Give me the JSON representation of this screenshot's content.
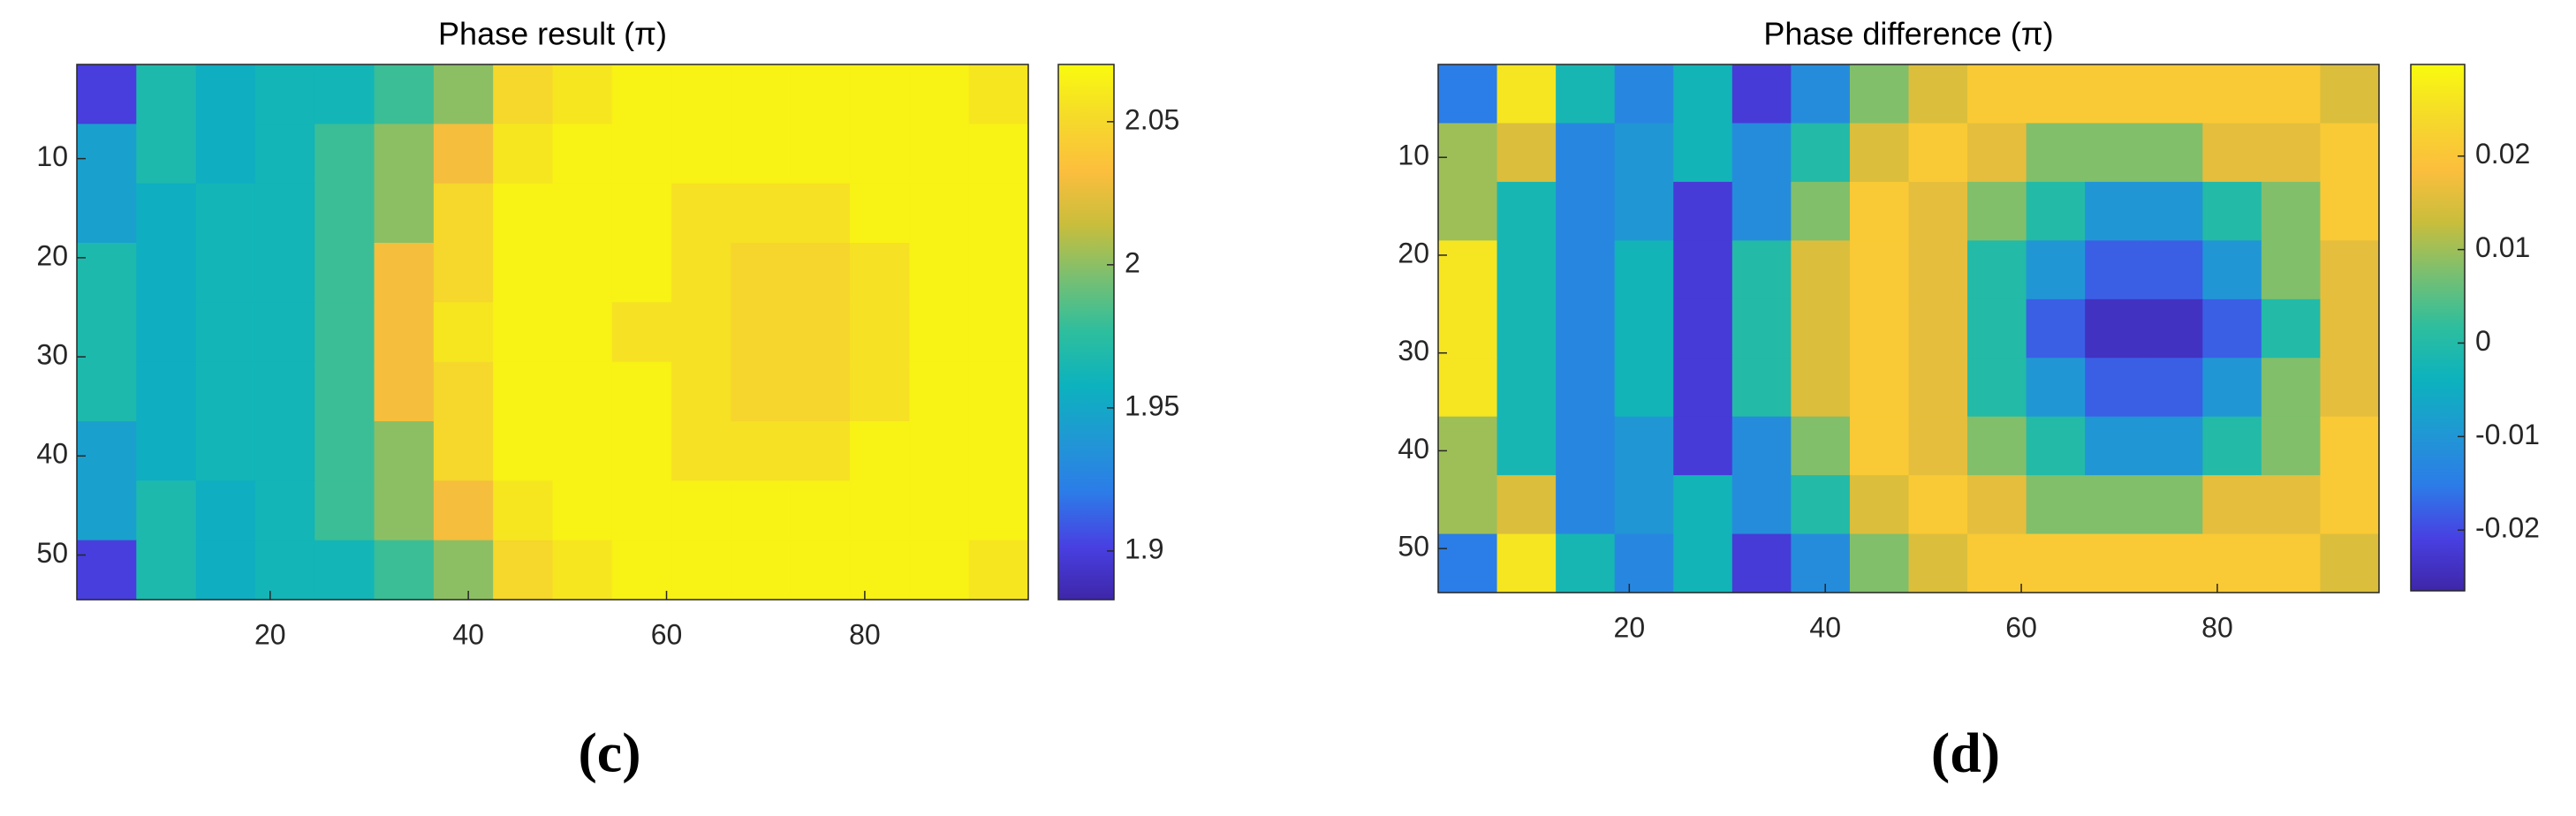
{
  "chart_data": [
    {
      "type": "heatmap",
      "title": "Phase result (π)",
      "caption": "(c)",
      "colormap": "parula",
      "x": [
        3.5,
        9.5,
        15.5,
        21.5,
        27.5,
        33.5,
        39.5,
        45.5,
        51.5,
        57.5,
        63.5,
        69.5,
        75.5,
        81.5,
        87.5,
        93.5
      ],
      "y": [
        3.5,
        9.5,
        15.5,
        21.5,
        27.5,
        33.5,
        39.5,
        45.5,
        51.5
      ],
      "z": [
        [
          1.9,
          1.968,
          1.955,
          1.962,
          1.962,
          1.98,
          2.0,
          2.05,
          2.058,
          2.065,
          2.065,
          2.065,
          2.065,
          2.065,
          2.065,
          2.058
        ],
        [
          1.945,
          1.968,
          1.955,
          1.962,
          1.98,
          2.0,
          2.03,
          2.058,
          2.065,
          2.065,
          2.065,
          2.065,
          2.065,
          2.065,
          2.065,
          2.065
        ],
        [
          1.945,
          1.955,
          1.962,
          1.962,
          1.98,
          2.0,
          2.05,
          2.065,
          2.065,
          2.065,
          2.055,
          2.055,
          2.055,
          2.065,
          2.065,
          2.065
        ],
        [
          1.968,
          1.955,
          1.962,
          1.962,
          1.98,
          2.03,
          2.05,
          2.065,
          2.065,
          2.065,
          2.055,
          2.048,
          2.048,
          2.055,
          2.065,
          2.065
        ],
        [
          1.968,
          1.955,
          1.962,
          1.962,
          1.98,
          2.03,
          2.058,
          2.065,
          2.065,
          2.055,
          2.055,
          2.048,
          2.048,
          2.055,
          2.065,
          2.065
        ],
        [
          1.968,
          1.955,
          1.962,
          1.962,
          1.98,
          2.03,
          2.05,
          2.065,
          2.065,
          2.065,
          2.055,
          2.048,
          2.048,
          2.055,
          2.065,
          2.065
        ],
        [
          1.945,
          1.955,
          1.962,
          1.962,
          1.98,
          2.0,
          2.05,
          2.065,
          2.065,
          2.065,
          2.055,
          2.055,
          2.055,
          2.065,
          2.065,
          2.065
        ],
        [
          1.945,
          1.968,
          1.955,
          1.962,
          1.98,
          2.0,
          2.03,
          2.058,
          2.065,
          2.065,
          2.065,
          2.065,
          2.065,
          2.065,
          2.065,
          2.065
        ],
        [
          1.9,
          1.968,
          1.955,
          1.962,
          1.962,
          1.98,
          2.0,
          2.05,
          2.058,
          2.065,
          2.065,
          2.065,
          2.065,
          2.065,
          2.065,
          2.058
        ]
      ],
      "xlim": [
        0.5,
        96.5
      ],
      "ylim": [
        0.5,
        54.5
      ],
      "xticks": [
        20,
        40,
        60,
        80
      ],
      "yticks": [
        10,
        20,
        30,
        40,
        50
      ],
      "clim": [
        1.883,
        2.07
      ],
      "cticks": [
        1.9,
        1.95,
        2,
        2.05
      ]
    },
    {
      "type": "heatmap",
      "title": "Phase difference (π)",
      "caption": "(d)",
      "colormap": "parula",
      "x": [
        3.5,
        9.5,
        15.5,
        21.5,
        27.5,
        33.5,
        39.5,
        45.5,
        51.5,
        57.5,
        63.5,
        69.5,
        75.5,
        81.5,
        87.5,
        93.5
      ],
      "y": [
        3.5,
        9.5,
        15.5,
        21.5,
        27.5,
        33.5,
        39.5,
        45.5,
        51.5
      ],
      "z": [
        [
          -0.015,
          0.026,
          -0.002,
          -0.013,
          -0.003,
          -0.022,
          -0.012,
          0.008,
          0.015,
          0.021,
          0.021,
          0.021,
          0.021,
          0.021,
          0.021,
          0.015
        ],
        [
          0.01,
          0.015,
          -0.013,
          -0.01,
          -0.003,
          -0.012,
          0,
          0.015,
          0.021,
          0.016,
          0.008,
          0.008,
          0.008,
          0.016,
          0.016,
          0.021
        ],
        [
          0.01,
          -0.002,
          -0.013,
          -0.01,
          -0.022,
          -0.012,
          0.008,
          0.021,
          0.016,
          0.008,
          0,
          -0.01,
          -0.01,
          0,
          0.008,
          0.021
        ],
        [
          0.026,
          -0.002,
          -0.013,
          -0.003,
          -0.022,
          0,
          0.015,
          0.021,
          0.016,
          0,
          -0.01,
          -0.018,
          -0.018,
          -0.01,
          0.008,
          0.016
        ],
        [
          0.026,
          -0.002,
          -0.013,
          -0.003,
          -0.022,
          0,
          0.015,
          0.021,
          0.016,
          0,
          -0.018,
          -0.024,
          -0.024,
          -0.018,
          0,
          0.016
        ],
        [
          0.026,
          -0.002,
          -0.013,
          -0.003,
          -0.022,
          0,
          0.015,
          0.021,
          0.016,
          0,
          -0.01,
          -0.018,
          -0.018,
          -0.01,
          0.008,
          0.016
        ],
        [
          0.01,
          -0.002,
          -0.013,
          -0.01,
          -0.022,
          -0.012,
          0.008,
          0.021,
          0.016,
          0.008,
          0,
          -0.01,
          -0.01,
          0,
          0.008,
          0.021
        ],
        [
          0.01,
          0.015,
          -0.013,
          -0.01,
          -0.003,
          -0.012,
          0,
          0.015,
          0.021,
          0.016,
          0.008,
          0.008,
          0.008,
          0.016,
          0.016,
          0.021
        ],
        [
          -0.015,
          0.026,
          -0.002,
          -0.013,
          -0.003,
          -0.022,
          -0.012,
          0.008,
          0.015,
          0.021,
          0.021,
          0.021,
          0.021,
          0.021,
          0.021,
          0.015
        ]
      ],
      "xlim": [
        0.5,
        96.5
      ],
      "ylim": [
        0.5,
        54.5
      ],
      "xticks": [
        20,
        40,
        60,
        80
      ],
      "yticks": [
        10,
        20,
        30,
        40,
        50
      ],
      "clim": [
        -0.0265,
        0.0298
      ],
      "cticks": [
        -0.02,
        -0.01,
        0,
        0.01,
        0.02
      ]
    }
  ]
}
